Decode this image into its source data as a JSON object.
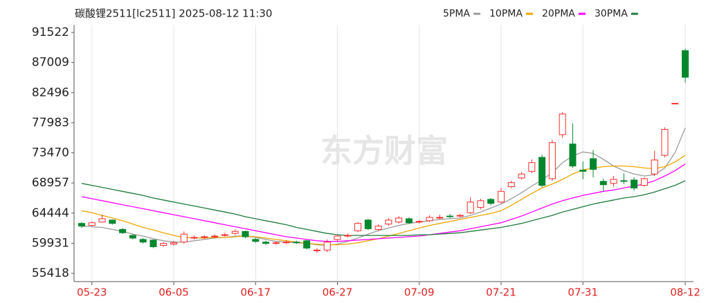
{
  "chart_data": {
    "type": "candlestick",
    "title": "碳酸锂2511[lc2511] 2025-08-12 11:30",
    "watermark": "东方财富",
    "categories": [
      null,
      "05-23",
      null,
      null,
      null,
      null,
      null,
      null,
      null,
      "06-05",
      null,
      null,
      null,
      null,
      null,
      null,
      null,
      "06-17",
      null,
      null,
      null,
      null,
      null,
      null,
      null,
      "06-27",
      null,
      null,
      null,
      null,
      null,
      null,
      null,
      "07-09",
      null,
      null,
      null,
      null,
      null,
      null,
      null,
      "07-21",
      null,
      null,
      null,
      null,
      null,
      null,
      null,
      "07-31",
      null,
      null,
      null,
      null,
      null,
      null,
      null,
      null,
      null,
      "08-12"
    ],
    "open": [
      62900,
      62600,
      63100,
      63400,
      62000,
      61100,
      60500,
      60400,
      59600,
      59800,
      60100,
      60700,
      60800,
      60900,
      61100,
      61400,
      61700,
      60500,
      60100,
      59900,
      60000,
      60100,
      60300,
      58800,
      58900,
      60500,
      61000,
      61800,
      63400,
      62000,
      62800,
      63100,
      63600,
      63100,
      63300,
      63700,
      64000,
      64000,
      64500,
      65300,
      66500,
      66100,
      68400,
      69700,
      70700,
      72800,
      69600,
      76200,
      74800,
      70900,
      72600,
      69200,
      68900,
      69300,
      69400,
      68600,
      70300,
      73100,
      80900,
      88800
    ],
    "high": [
      63100,
      63200,
      64200,
      63500,
      62200,
      61300,
      60700,
      60500,
      60100,
      60300,
      61700,
      61100,
      61100,
      61300,
      61500,
      62000,
      61800,
      60700,
      60300,
      60200,
      60400,
      60300,
      60400,
      59200,
      60500,
      61200,
      61400,
      63100,
      63600,
      62800,
      63700,
      64000,
      63800,
      63400,
      64100,
      64200,
      64300,
      64300,
      66800,
      66600,
      66700,
      68200,
      69300,
      70600,
      72500,
      73200,
      75400,
      79600,
      77900,
      72200,
      73900,
      69600,
      70000,
      70400,
      69800,
      69800,
      73800,
      77300,
      80900,
      89100
    ],
    "low": [
      62200,
      62500,
      63000,
      62700,
      61300,
      60500,
      59900,
      59200,
      59400,
      59600,
      59900,
      60500,
      60600,
      60700,
      60900,
      61200,
      60700,
      60000,
      59700,
      59700,
      59800,
      59800,
      59000,
      58500,
      58600,
      60200,
      60800,
      61600,
      61900,
      61800,
      62500,
      62900,
      62800,
      62900,
      63100,
      63500,
      63700,
      63800,
      64300,
      65000,
      65600,
      65900,
      68200,
      69500,
      70400,
      68300,
      69300,
      75700,
      71200,
      69500,
      69800,
      67700,
      68400,
      68800,
      67800,
      68400,
      70000,
      72800,
      80900,
      84000
    ],
    "close": [
      62500,
      63000,
      63600,
      62900,
      61500,
      60700,
      60100,
      59400,
      59900,
      60000,
      61300,
      60800,
      60900,
      61000,
      61200,
      61700,
      60900,
      60200,
      59900,
      60000,
      60100,
      60000,
      59200,
      58900,
      60100,
      61000,
      61100,
      62900,
      62100,
      62500,
      63400,
      63700,
      63000,
      63200,
      63800,
      63800,
      63900,
      64100,
      66100,
      66300,
      65900,
      67700,
      69000,
      70300,
      72000,
      68600,
      75000,
      79300,
      71500,
      70700,
      71000,
      68700,
      69500,
      69200,
      68200,
      69600,
      72400,
      77000,
      80900,
      84800
    ],
    "up_color": "#ff2a2a",
    "down_color": "#00872d",
    "series": [
      {
        "name": "5PMA",
        "color": "#9a9a9a",
        "values": [
          62500,
          62400,
          62300,
          62000,
          61700,
          61300,
          61000,
          60600,
          60300,
          60100,
          60100,
          60300,
          60500,
          60700,
          60800,
          61000,
          61000,
          60800,
          60500,
          60200,
          60100,
          60000,
          59900,
          59700,
          59600,
          59800,
          60200,
          60700,
          61300,
          61800,
          62200,
          62600,
          62900,
          63100,
          63300,
          63500,
          63600,
          63700,
          64100,
          64600,
          65200,
          65800,
          66600,
          67500,
          68500,
          69400,
          70500,
          72000,
          73000,
          73600,
          73400,
          72500,
          71500,
          70800,
          70300,
          70000,
          70200,
          71200,
          73500,
          77200
        ]
      },
      {
        "name": "10PMA",
        "color": "#f0a500",
        "values": [
          64800,
          64500,
          64100,
          63700,
          63300,
          62800,
          62300,
          61900,
          61500,
          61100,
          60800,
          60700,
          60700,
          60800,
          60800,
          60900,
          61000,
          60900,
          60700,
          60500,
          60300,
          60100,
          59900,
          59800,
          59700,
          59700,
          59800,
          60000,
          60300,
          60600,
          61000,
          61400,
          61800,
          62200,
          62600,
          62900,
          63200,
          63500,
          63800,
          64100,
          64400,
          64800,
          65600,
          66500,
          67400,
          68200,
          68800,
          69500,
          70300,
          70900,
          71200,
          71400,
          71500,
          71500,
          71400,
          71200,
          71100,
          71400,
          72100,
          73100
        ]
      },
      {
        "name": "20PMA",
        "color": "#ff00ff",
        "values": [
          66900,
          66600,
          66300,
          66000,
          65700,
          65400,
          65100,
          64800,
          64500,
          64200,
          63900,
          63600,
          63300,
          63000,
          62700,
          62400,
          62100,
          61800,
          61500,
          61200,
          60900,
          60700,
          60500,
          60300,
          60200,
          60200,
          60300,
          60400,
          60500,
          60600,
          60700,
          60800,
          60900,
          61000,
          61200,
          61400,
          61600,
          61800,
          62100,
          62400,
          62700,
          63000,
          63500,
          64000,
          64600,
          65200,
          65800,
          66300,
          66700,
          67100,
          67400,
          67700,
          67900,
          68200,
          68500,
          68800,
          69300,
          70000,
          70800,
          71800
        ]
      },
      {
        "name": "30PMA",
        "color": "#1d7a3c",
        "values": [
          68900,
          68600,
          68300,
          68000,
          67700,
          67400,
          67100,
          66700,
          66400,
          66100,
          65800,
          65500,
          65200,
          64900,
          64600,
          64300,
          63900,
          63600,
          63300,
          63000,
          62700,
          62300,
          62000,
          61700,
          61400,
          61200,
          61100,
          61100,
          61100,
          61100,
          61100,
          61100,
          61100,
          61200,
          61200,
          61300,
          61400,
          61500,
          61700,
          61900,
          62100,
          62300,
          62600,
          62900,
          63300,
          63700,
          64100,
          64600,
          65000,
          65400,
          65800,
          66100,
          66400,
          66700,
          66900,
          67200,
          67600,
          68100,
          68600,
          69300
        ]
      }
    ],
    "ylim": [
      55418,
      91522
    ],
    "yticks": [
      55418,
      59931,
      64444,
      68957,
      73470,
      77983,
      82496,
      87009,
      91522
    ]
  }
}
